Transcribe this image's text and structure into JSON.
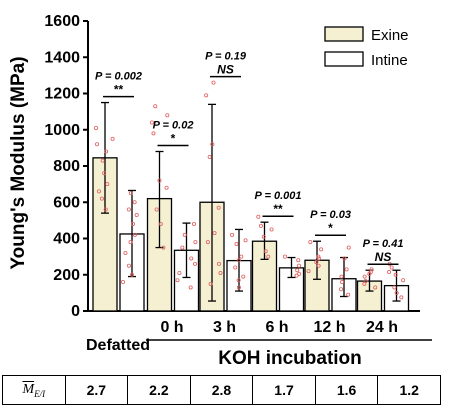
{
  "chart_data": {
    "type": "bar",
    "ylabel": "Young's Modulus (MPa)",
    "ylim": [
      0,
      1600
    ],
    "yticks": [
      "0",
      "200",
      "400",
      "600",
      "800",
      "1000",
      "1200",
      "1400",
      "1600"
    ],
    "categories": [
      "Defatted",
      "0 h",
      "3 h",
      "6 h",
      "12 h",
      "24 h"
    ],
    "group_label": "KOH incubation",
    "series": [
      {
        "name": "Exine",
        "color": "#f5f0d2",
        "values": [
          845,
          620,
          600,
          385,
          280,
          165
        ],
        "err_low": [
          540,
          350,
          55,
          285,
          175,
          110
        ],
        "err_high": [
          1150,
          880,
          1140,
          490,
          385,
          225
        ]
      },
      {
        "name": "Intine",
        "color": "#ffffff",
        "values": [
          425,
          335,
          278,
          238,
          178,
          140
        ],
        "err_low": [
          190,
          185,
          110,
          185,
          80,
          55
        ],
        "err_high": [
          665,
          485,
          450,
          295,
          295,
          225
        ]
      }
    ],
    "significance": [
      {
        "p": "P = 0.002",
        "mark": "**"
      },
      {
        "p": "P = 0.02",
        "mark": "*"
      },
      {
        "p": "P = 0.19",
        "mark": "NS"
      },
      {
        "p": "P = 0.001",
        "mark": "**"
      },
      {
        "p": "P = 0.03",
        "mark": "*"
      },
      {
        "p": "P = 0.41",
        "mark": "NS"
      }
    ],
    "points": [
      [
        [
          1010,
          950,
          920,
          880,
          830,
          760,
          700,
          660,
          620,
          560
        ],
        [
          650,
          600,
          560,
          530,
          480,
          420,
          380,
          320,
          250,
          200,
          160
        ]
      ],
      [
        [
          1130,
          1080,
          1040,
          980,
          720,
          680,
          560,
          480,
          350
        ],
        [
          480,
          420,
          380,
          350,
          290,
          260,
          210,
          170,
          130
        ]
      ],
      [
        [
          1260,
          1190,
          920,
          850,
          570,
          430,
          380,
          260,
          210,
          150
        ],
        [
          420,
          390,
          370,
          300,
          280,
          240,
          190,
          170,
          130
        ]
      ],
      [
        [
          520,
          470,
          450,
          410,
          330,
          300
        ],
        [
          300,
          280,
          250,
          225,
          205,
          195
        ]
      ],
      [
        [
          380,
          340,
          300,
          290,
          270,
          250,
          220
        ],
        [
          350,
          290,
          230,
          190,
          160,
          120,
          90
        ]
      ],
      [
        [
          230,
          215,
          205,
          190,
          165,
          150,
          130
        ],
        [
          260,
          240,
          215,
          200,
          170,
          130,
          100,
          75
        ]
      ]
    ]
  },
  "table": {
    "header_main": "M",
    "header_sub": "E/I",
    "values": [
      "2.7",
      "2.2",
      "2.8",
      "1.7",
      "1.6",
      "1.2"
    ]
  }
}
